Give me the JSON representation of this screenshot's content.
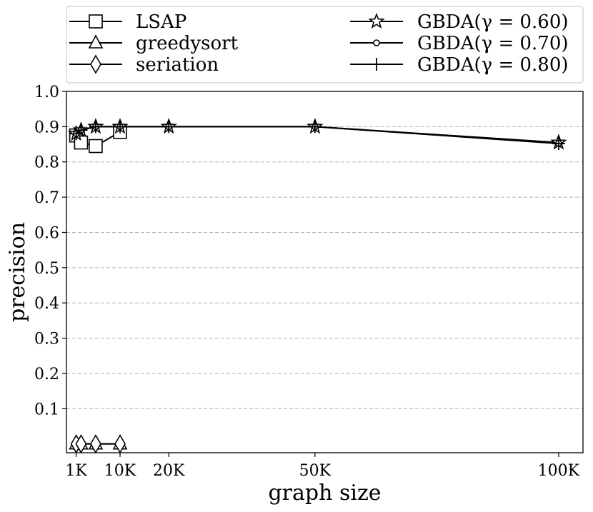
{
  "chart_data": {
    "type": "line",
    "xlabel": "graph size",
    "ylabel": "precision",
    "xlim": [
      -1000,
      105000
    ],
    "ylim": [
      -0.025,
      1.0
    ],
    "xticks": [
      {
        "value": 1000,
        "label": "1K"
      },
      {
        "value": 10000,
        "label": "10K"
      },
      {
        "value": 20000,
        "label": "20K"
      },
      {
        "value": 50000,
        "label": "50K"
      },
      {
        "value": 100000,
        "label": "100K"
      }
    ],
    "yticks": [
      {
        "value": 0.1,
        "label": "0.1"
      },
      {
        "value": 0.2,
        "label": "0.2"
      },
      {
        "value": 0.3,
        "label": "0.3"
      },
      {
        "value": 0.4,
        "label": "0.4"
      },
      {
        "value": 0.5,
        "label": "0.5"
      },
      {
        "value": 0.6,
        "label": "0.6"
      },
      {
        "value": 0.7,
        "label": "0.7"
      },
      {
        "value": 0.8,
        "label": "0.8"
      },
      {
        "value": 0.9,
        "label": "0.9"
      },
      {
        "value": 1.0,
        "label": "1.0"
      }
    ],
    "grid": "horizontal dashed",
    "legend_position": "top",
    "series": [
      {
        "name": "LSAP",
        "marker": "square",
        "x": [
          1000,
          2000,
          5000,
          10000
        ],
        "y": [
          0.875,
          0.855,
          0.845,
          0.885
        ]
      },
      {
        "name": "greedysort",
        "marker": "triangle",
        "x": [
          1000,
          2000,
          5000,
          10000
        ],
        "y": [
          0.0,
          0.0,
          0.0,
          0.0
        ]
      },
      {
        "name": "seriation",
        "marker": "diamond",
        "x": [
          1000,
          2000,
          5000,
          10000
        ],
        "y": [
          0.0,
          0.0,
          0.0,
          0.0
        ]
      },
      {
        "name": "GBDA(γ = 0.60)",
        "marker": "star",
        "x": [
          1000,
          2000,
          5000,
          10000,
          20000,
          50000,
          100000
        ],
        "y": [
          0.88,
          0.89,
          0.9,
          0.9,
          0.9,
          0.9,
          0.855
        ]
      },
      {
        "name": "GBDA(γ = 0.70)",
        "marker": "circle",
        "x": [
          1000,
          2000,
          5000,
          10000,
          20000,
          50000,
          100000
        ],
        "y": [
          0.88,
          0.89,
          0.9,
          0.9,
          0.9,
          0.9,
          0.853
        ]
      },
      {
        "name": "GBDA(γ = 0.80)",
        "marker": "plus",
        "x": [
          1000,
          2000,
          5000,
          10000,
          20000,
          50000,
          100000
        ],
        "y": [
          0.88,
          0.89,
          0.9,
          0.9,
          0.9,
          0.9,
          0.852
        ]
      }
    ]
  }
}
